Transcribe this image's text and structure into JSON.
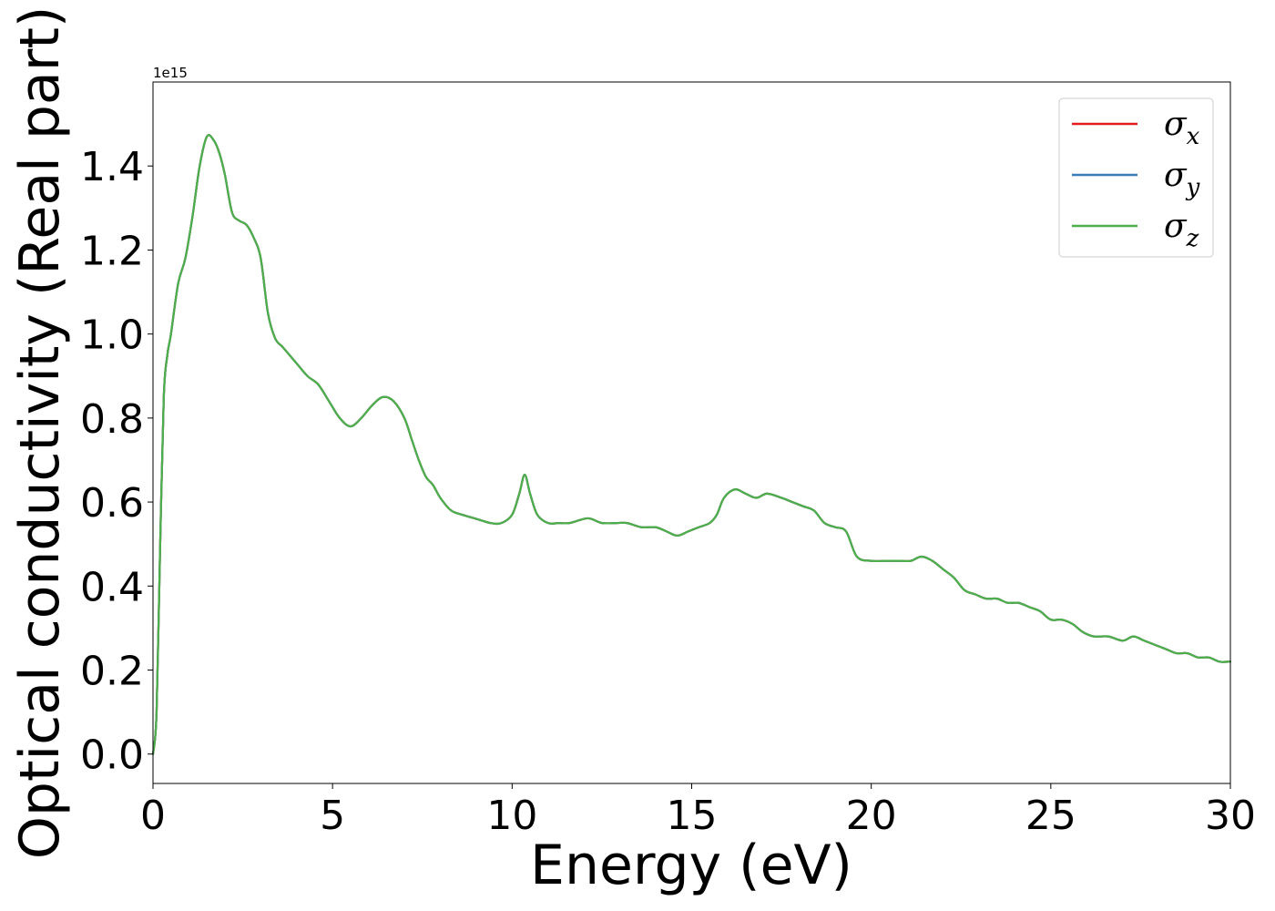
{
  "chart_data": {
    "type": "line",
    "title": "",
    "xlabel": "Energy (eV)",
    "ylabel": "Optical conductivity (Real part)",
    "y_offset_label": "1e15",
    "xlim": [
      0,
      30
    ],
    "ylim": [
      -0.07,
      1.6
    ],
    "xticks": [
      0,
      5,
      10,
      15,
      20,
      25,
      30
    ],
    "xtick_labels": [
      "0",
      "5",
      "10",
      "15",
      "20",
      "25",
      "30"
    ],
    "yticks": [
      0.0,
      0.2,
      0.4,
      0.6,
      0.8,
      1.0,
      1.2,
      1.4
    ],
    "ytick_labels": [
      "0.0",
      "0.2",
      "0.4",
      "0.6",
      "0.8",
      "1.0",
      "1.2",
      "1.4"
    ],
    "grid": false,
    "legend_position": "top-right",
    "x": [
      0,
      0.1,
      0.2,
      0.3,
      0.4,
      0.5,
      0.7,
      0.9,
      1.1,
      1.3,
      1.5,
      1.7,
      1.85,
      2.0,
      2.2,
      2.4,
      2.6,
      2.8,
      3.0,
      3.2,
      3.4,
      3.6,
      3.8,
      4.0,
      4.3,
      4.6,
      4.9,
      5.2,
      5.5,
      5.8,
      6.1,
      6.4,
      6.7,
      7.0,
      7.2,
      7.4,
      7.6,
      7.8,
      8.0,
      8.3,
      8.6,
      9.0,
      9.4,
      9.7,
      10.0,
      10.2,
      10.35,
      10.5,
      10.7,
      11.0,
      11.3,
      11.6,
      12.0,
      12.2,
      12.5,
      12.9,
      13.2,
      13.6,
      14.0,
      14.3,
      14.6,
      14.9,
      15.2,
      15.5,
      15.7,
      15.9,
      16.2,
      16.5,
      16.8,
      17.1,
      17.5,
      17.8,
      18.1,
      18.4,
      18.7,
      19.0,
      19.3,
      19.6,
      20.0,
      20.4,
      20.8,
      21.1,
      21.4,
      21.7,
      22.0,
      22.3,
      22.6,
      22.9,
      23.2,
      23.5,
      23.8,
      24.1,
      24.4,
      24.7,
      25.0,
      25.3,
      25.6,
      25.9,
      26.2,
      26.6,
      27.0,
      27.3,
      27.6,
      27.9,
      28.2,
      28.5,
      28.8,
      29.1,
      29.4,
      29.7,
      30.0
    ],
    "series": [
      {
        "name": "σx",
        "color": "#e41a1c",
        "values": [
          0.0,
          0.1,
          0.5,
          0.85,
          0.95,
          1.0,
          1.12,
          1.18,
          1.28,
          1.4,
          1.47,
          1.46,
          1.43,
          1.38,
          1.29,
          1.27,
          1.26,
          1.23,
          1.18,
          1.05,
          0.99,
          0.97,
          0.95,
          0.93,
          0.9,
          0.88,
          0.84,
          0.8,
          0.78,
          0.8,
          0.83,
          0.85,
          0.84,
          0.8,
          0.75,
          0.7,
          0.66,
          0.64,
          0.61,
          0.58,
          0.57,
          0.56,
          0.55,
          0.55,
          0.57,
          0.62,
          0.665,
          0.62,
          0.57,
          0.55,
          0.55,
          0.55,
          0.56,
          0.56,
          0.55,
          0.55,
          0.55,
          0.54,
          0.54,
          0.53,
          0.52,
          0.53,
          0.54,
          0.55,
          0.57,
          0.61,
          0.63,
          0.62,
          0.61,
          0.62,
          0.61,
          0.6,
          0.59,
          0.58,
          0.55,
          0.54,
          0.53,
          0.47,
          0.46,
          0.46,
          0.46,
          0.46,
          0.47,
          0.46,
          0.44,
          0.42,
          0.39,
          0.38,
          0.37,
          0.37,
          0.36,
          0.36,
          0.35,
          0.34,
          0.32,
          0.32,
          0.31,
          0.29,
          0.28,
          0.28,
          0.27,
          0.28,
          0.27,
          0.26,
          0.25,
          0.24,
          0.24,
          0.23,
          0.23,
          0.22,
          0.22
        ]
      },
      {
        "name": "σy",
        "color": "#377eb8",
        "values": [
          0.0,
          0.1,
          0.5,
          0.85,
          0.95,
          1.0,
          1.12,
          1.18,
          1.28,
          1.4,
          1.47,
          1.46,
          1.43,
          1.38,
          1.29,
          1.27,
          1.26,
          1.23,
          1.18,
          1.05,
          0.99,
          0.97,
          0.95,
          0.93,
          0.9,
          0.88,
          0.84,
          0.8,
          0.78,
          0.8,
          0.83,
          0.85,
          0.84,
          0.8,
          0.75,
          0.7,
          0.66,
          0.64,
          0.61,
          0.58,
          0.57,
          0.56,
          0.55,
          0.55,
          0.57,
          0.62,
          0.665,
          0.62,
          0.57,
          0.55,
          0.55,
          0.55,
          0.56,
          0.56,
          0.55,
          0.55,
          0.55,
          0.54,
          0.54,
          0.53,
          0.52,
          0.53,
          0.54,
          0.55,
          0.57,
          0.61,
          0.63,
          0.62,
          0.61,
          0.62,
          0.61,
          0.6,
          0.59,
          0.58,
          0.55,
          0.54,
          0.53,
          0.47,
          0.46,
          0.46,
          0.46,
          0.46,
          0.47,
          0.46,
          0.44,
          0.42,
          0.39,
          0.38,
          0.37,
          0.37,
          0.36,
          0.36,
          0.35,
          0.34,
          0.32,
          0.32,
          0.31,
          0.29,
          0.28,
          0.28,
          0.27,
          0.28,
          0.27,
          0.26,
          0.25,
          0.24,
          0.24,
          0.23,
          0.23,
          0.22,
          0.22
        ]
      },
      {
        "name": "σz",
        "color": "#4daf4a",
        "values": [
          0.0,
          0.1,
          0.5,
          0.85,
          0.95,
          1.0,
          1.12,
          1.18,
          1.28,
          1.4,
          1.47,
          1.46,
          1.43,
          1.38,
          1.29,
          1.27,
          1.26,
          1.23,
          1.18,
          1.05,
          0.99,
          0.97,
          0.95,
          0.93,
          0.9,
          0.88,
          0.84,
          0.8,
          0.78,
          0.8,
          0.83,
          0.85,
          0.84,
          0.8,
          0.75,
          0.7,
          0.66,
          0.64,
          0.61,
          0.58,
          0.57,
          0.56,
          0.55,
          0.55,
          0.57,
          0.62,
          0.665,
          0.62,
          0.57,
          0.55,
          0.55,
          0.55,
          0.56,
          0.56,
          0.55,
          0.55,
          0.55,
          0.54,
          0.54,
          0.53,
          0.52,
          0.53,
          0.54,
          0.55,
          0.57,
          0.61,
          0.63,
          0.62,
          0.61,
          0.62,
          0.61,
          0.6,
          0.59,
          0.58,
          0.55,
          0.54,
          0.53,
          0.47,
          0.46,
          0.46,
          0.46,
          0.46,
          0.47,
          0.46,
          0.44,
          0.42,
          0.39,
          0.38,
          0.37,
          0.37,
          0.36,
          0.36,
          0.35,
          0.34,
          0.32,
          0.32,
          0.31,
          0.29,
          0.28,
          0.28,
          0.27,
          0.28,
          0.27,
          0.26,
          0.25,
          0.24,
          0.24,
          0.23,
          0.23,
          0.22,
          0.22
        ]
      }
    ],
    "legend": [
      {
        "symbol": "σ",
        "subscript": "x"
      },
      {
        "symbol": "σ",
        "subscript": "y"
      },
      {
        "symbol": "σ",
        "subscript": "z"
      }
    ]
  }
}
